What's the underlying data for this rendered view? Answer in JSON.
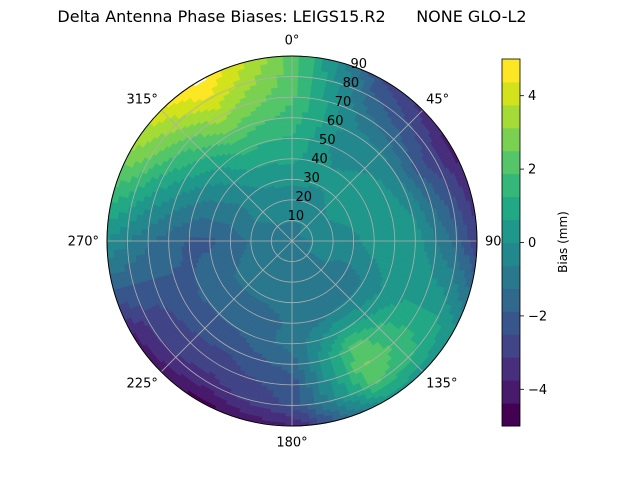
{
  "chart_data": {
    "type": "polar-contour",
    "title": "Delta Antenna Phase Biases: LEIGS15.R2      NONE GLO-L2",
    "angle_ticks": [
      {
        "deg": 0,
        "label": "0°"
      },
      {
        "deg": 45,
        "label": "45°"
      },
      {
        "deg": 90,
        "label": "90°"
      },
      {
        "deg": 135,
        "label": "135°"
      },
      {
        "deg": 180,
        "label": "180°"
      },
      {
        "deg": 225,
        "label": "225°"
      },
      {
        "deg": 270,
        "label": "270°"
      },
      {
        "deg": 315,
        "label": "315°"
      }
    ],
    "angular_direction": "clockwise",
    "zero_location": "top",
    "radial_ticks": [
      10,
      20,
      30,
      40,
      50,
      60,
      70,
      80,
      90
    ],
    "rlim": [
      0,
      90
    ],
    "grid": true,
    "colorbar": {
      "label": "Bias (mm)",
      "ticks": [
        -4,
        -2,
        0,
        2,
        4
      ],
      "range": [
        -5,
        5
      ],
      "levels": [
        -5,
        -4.375,
        -3.75,
        -3.125,
        -2.5,
        -1.875,
        -1.25,
        -0.625,
        0,
        0.625,
        1.25,
        1.875,
        2.5,
        3.125,
        3.75,
        4.375,
        5
      ],
      "colors": [
        "#440154",
        "#481a6c",
        "#472f7d",
        "#414487",
        "#39568c",
        "#31688e",
        "#2a788e",
        "#23888e",
        "#1f988b",
        "#22a884",
        "#35b779",
        "#54c568",
        "#7ad151",
        "#a5db36",
        "#d2e21b",
        "#fde725"
      ]
    },
    "field": {
      "azimuth_deg": [
        0,
        30,
        60,
        90,
        120,
        150,
        180,
        210,
        240,
        270,
        300,
        330
      ],
      "zenith_deg": [
        0,
        10,
        20,
        30,
        40,
        50,
        60,
        70,
        80,
        90
      ],
      "values_mm": [
        [
          -0.8,
          -0.6,
          -0.4,
          0.2,
          0.8,
          1.2,
          1.6,
          2.0,
          2.2,
          2.4
        ],
        [
          -0.8,
          -0.6,
          -0.2,
          0.0,
          0.0,
          -0.4,
          -0.4,
          -1.0,
          -1.8,
          -2.6
        ],
        [
          -0.8,
          -0.4,
          0.0,
          0.4,
          0.4,
          0.2,
          -0.6,
          -2.0,
          -3.0,
          -4.0
        ],
        [
          -0.8,
          -0.6,
          -0.6,
          -0.2,
          0.4,
          0.6,
          0.4,
          -0.6,
          -1.6,
          -3.0
        ],
        [
          -0.8,
          -0.6,
          -0.6,
          -0.8,
          -0.6,
          0.0,
          0.6,
          0.8,
          0.8,
          0.2
        ],
        [
          -0.8,
          -0.8,
          -1.2,
          -1.2,
          -0.6,
          0.8,
          2.2,
          2.6,
          2.0,
          0.4
        ],
        [
          -0.8,
          -0.8,
          -1.0,
          -1.2,
          -1.2,
          -1.0,
          -1.6,
          -2.2,
          -2.4,
          -3.8
        ],
        [
          -0.8,
          -0.8,
          -1.0,
          -1.2,
          -1.4,
          -1.8,
          -2.4,
          -2.8,
          -3.4,
          -4.6
        ],
        [
          -0.8,
          -1.0,
          -1.0,
          -1.2,
          -1.4,
          -1.8,
          -2.2,
          -2.6,
          -3.0,
          -3.8
        ],
        [
          -0.8,
          -0.8,
          -1.2,
          -1.6,
          -2.0,
          -2.0,
          -1.6,
          -1.2,
          -0.6,
          0.0
        ],
        [
          -0.8,
          -0.8,
          -0.6,
          -0.8,
          -0.6,
          -0.2,
          0.6,
          1.4,
          2.4,
          3.2
        ],
        [
          -0.8,
          -0.6,
          -0.2,
          0.0,
          0.6,
          1.4,
          2.4,
          3.4,
          4.4,
          5.2
        ]
      ]
    }
  }
}
